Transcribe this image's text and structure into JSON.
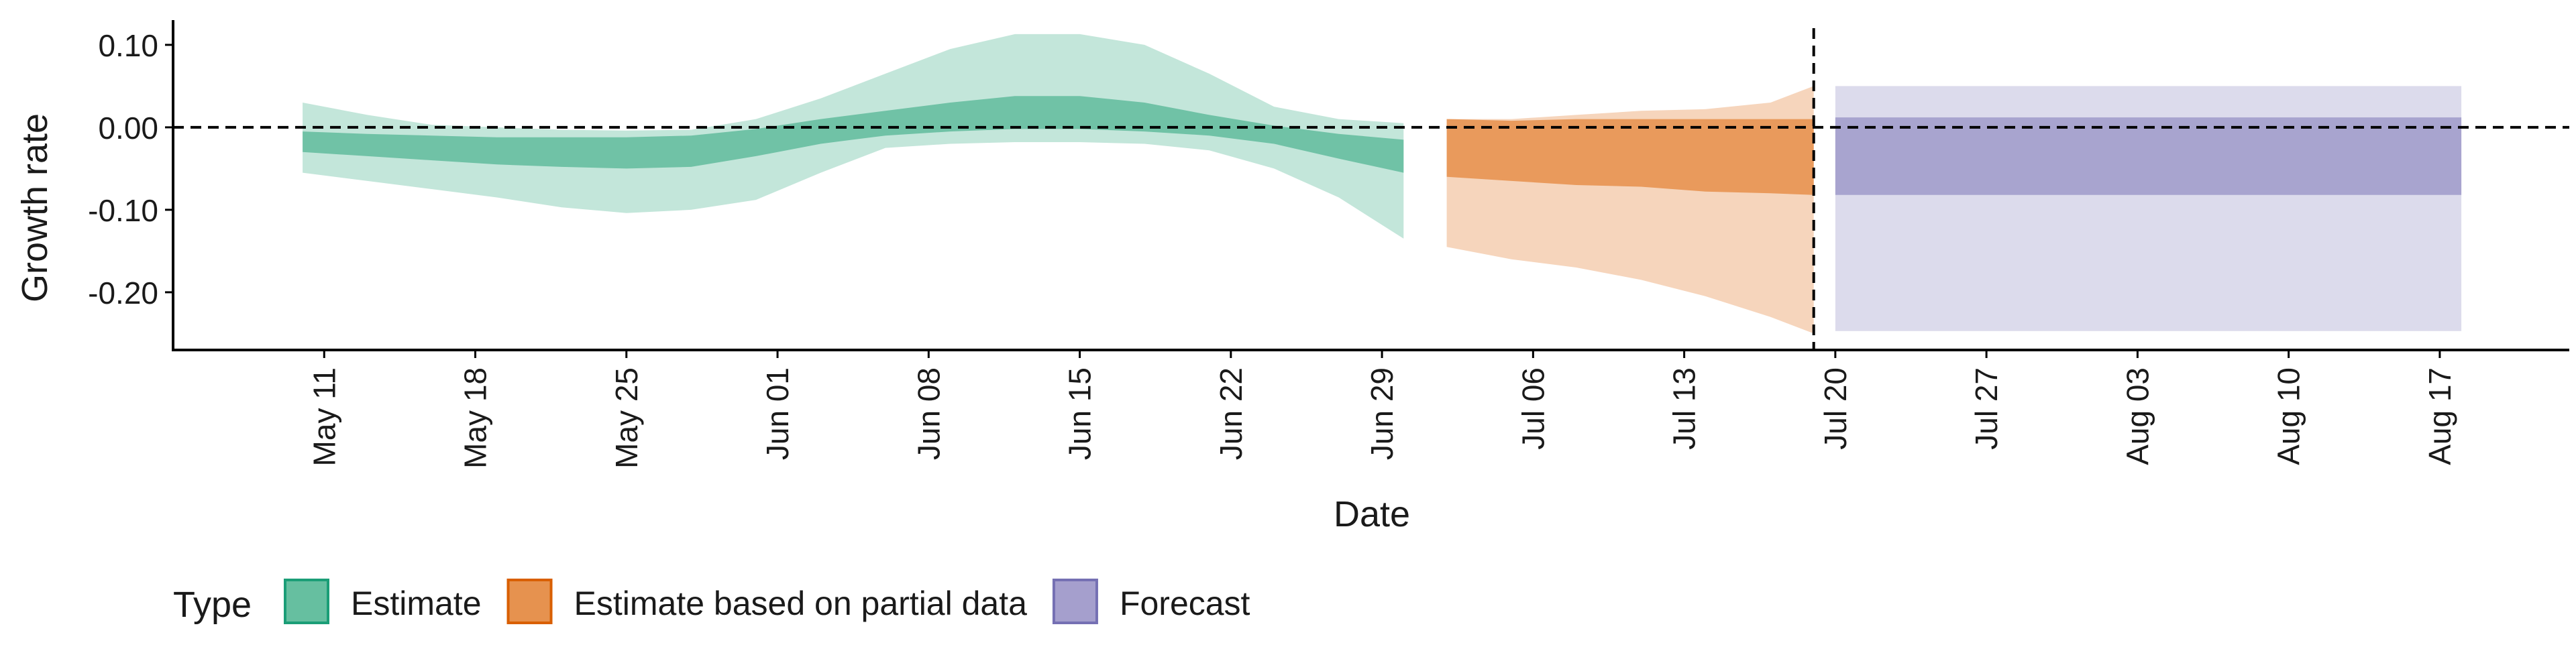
{
  "chart_data": {
    "type": "area",
    "title": "",
    "xlabel": "Date",
    "ylabel": "Growth rate",
    "ylim": [
      -0.27,
      0.13
    ],
    "y_ticks": [
      0.1,
      0.0,
      -0.1,
      -0.2
    ],
    "y_tick_labels": [
      "0.10",
      "0.00",
      "-0.10",
      "-0.20"
    ],
    "x_range": [
      "2020-05-04",
      "2020-08-23"
    ],
    "x_ticks": [
      "2020-05-11",
      "2020-05-18",
      "2020-05-25",
      "2020-06-01",
      "2020-06-08",
      "2020-06-15",
      "2020-06-22",
      "2020-06-29",
      "2020-07-06",
      "2020-07-13",
      "2020-07-20",
      "2020-07-27",
      "2020-08-03",
      "2020-08-10",
      "2020-08-17"
    ],
    "x_tick_labels": [
      "May 11",
      "May 18",
      "May 25",
      "Jun 01",
      "Jun 08",
      "Jun 15",
      "Jun 22",
      "Jun 29",
      "Jul 06",
      "Jul 13",
      "Jul 20",
      "Jul 27",
      "Aug 03",
      "Aug 10",
      "Aug 17"
    ],
    "reference_lines": {
      "horizontal_y": 0.0,
      "vertical_date": "2020-07-19"
    },
    "grid": false,
    "legend": {
      "title": "Type",
      "position": "bottom-left",
      "entries": [
        {
          "label": "Estimate",
          "fill": "#66bfa0",
          "stroke": "#1b9e77"
        },
        {
          "label": "Estimate based on partial data",
          "fill": "#e6924f",
          "stroke": "#d95f02"
        },
        {
          "label": "Forecast",
          "fill": "#a59fcd",
          "stroke": "#7570b3"
        }
      ]
    },
    "series": [
      {
        "name": "Estimate",
        "color": "#1b9e77",
        "outer_fill": "#c3e6da",
        "inner_fill": "#70c2a6",
        "x": [
          "2020-05-10",
          "2020-05-13",
          "2020-05-16",
          "2020-05-19",
          "2020-05-22",
          "2020-05-25",
          "2020-05-28",
          "2020-05-31",
          "2020-06-03",
          "2020-06-06",
          "2020-06-09",
          "2020-06-12",
          "2020-06-15",
          "2020-06-18",
          "2020-06-21",
          "2020-06-24",
          "2020-06-27",
          "2020-06-30"
        ],
        "lower_90": [
          -0.055,
          -0.065,
          -0.075,
          -0.085,
          -0.097,
          -0.104,
          -0.1,
          -0.088,
          -0.055,
          -0.025,
          -0.02,
          -0.018,
          -0.018,
          -0.02,
          -0.028,
          -0.05,
          -0.085,
          -0.135
        ],
        "upper_90": [
          0.03,
          0.015,
          0.003,
          0.0,
          -0.003,
          -0.004,
          -0.003,
          0.01,
          0.035,
          0.065,
          0.095,
          0.113,
          0.113,
          0.1,
          0.065,
          0.025,
          0.01,
          0.005
        ],
        "lower_50": [
          -0.03,
          -0.035,
          -0.04,
          -0.045,
          -0.048,
          -0.05,
          -0.048,
          -0.035,
          -0.02,
          -0.01,
          -0.005,
          -0.002,
          -0.002,
          -0.005,
          -0.01,
          -0.02,
          -0.038,
          -0.055
        ],
        "upper_50": [
          -0.005,
          -0.008,
          -0.01,
          -0.012,
          -0.012,
          -0.012,
          -0.01,
          -0.002,
          0.01,
          0.02,
          0.03,
          0.038,
          0.038,
          0.03,
          0.015,
          0.002,
          -0.008,
          -0.015
        ]
      },
      {
        "name": "Estimate based on partial data",
        "color": "#d95f02",
        "outer_fill": "#f6d5bc",
        "inner_fill": "#e99a5c",
        "x": [
          "2020-07-02",
          "2020-07-05",
          "2020-07-08",
          "2020-07-11",
          "2020-07-14",
          "2020-07-17",
          "2020-07-19"
        ],
        "lower_90": [
          -0.145,
          -0.16,
          -0.17,
          -0.185,
          -0.205,
          -0.23,
          -0.25
        ],
        "upper_90": [
          0.01,
          0.01,
          0.015,
          0.02,
          0.022,
          0.03,
          0.05
        ],
        "lower_50": [
          -0.06,
          -0.065,
          -0.07,
          -0.072,
          -0.078,
          -0.08,
          -0.082
        ],
        "upper_50": [
          0.01,
          0.008,
          0.01,
          0.01,
          0.01,
          0.01,
          0.01
        ]
      },
      {
        "name": "Forecast",
        "color": "#7570b3",
        "outer_fill": "#dcdbec",
        "inner_fill": "#a8a4cf",
        "x": [
          "2020-07-20",
          "2020-08-18"
        ],
        "lower_90": [
          -0.247,
          -0.247
        ],
        "upper_90": [
          0.05,
          0.05
        ],
        "lower_50": [
          -0.082,
          -0.082
        ],
        "upper_50": [
          0.012,
          0.012
        ]
      }
    ]
  }
}
